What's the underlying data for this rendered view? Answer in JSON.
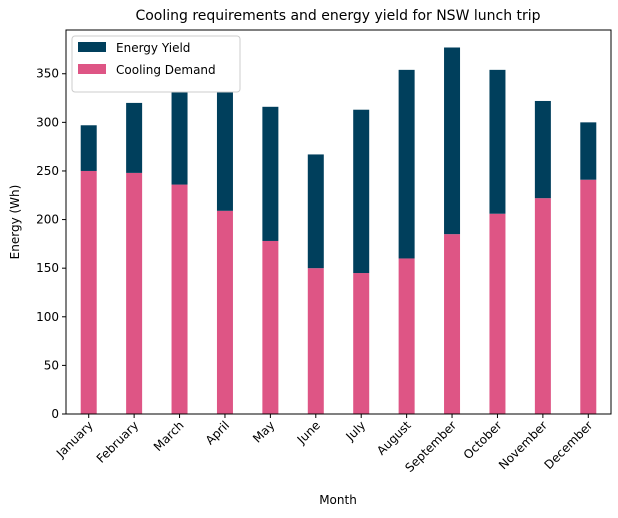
{
  "chart_data": {
    "type": "stacked_bar",
    "title": "Cooling requirements and energy yield for NSW lunch trip",
    "x_label": "Month",
    "y_label": "Energy (Wh)",
    "categories": [
      "January",
      "February",
      "March",
      "April",
      "May",
      "June",
      "July",
      "August",
      "September",
      "October",
      "November",
      "December"
    ],
    "series": [
      {
        "name": "Energy Yield",
        "color": "#003f5c",
        "values": [
          47,
          72,
          103,
          125,
          138,
          117,
          168,
          194,
          192,
          148,
          100,
          59
        ]
      },
      {
        "name": "Cooling Demand",
        "color": "#de5585",
        "values": [
          250,
          248,
          236,
          209,
          178,
          150,
          145,
          160,
          185,
          206,
          222,
          241
        ]
      }
    ],
    "ylim": [
      0,
      395
    ],
    "yticks": [
      0,
      50,
      100,
      150,
      200,
      250,
      300,
      350
    ],
    "grid": false,
    "legend": "upper-left"
  }
}
